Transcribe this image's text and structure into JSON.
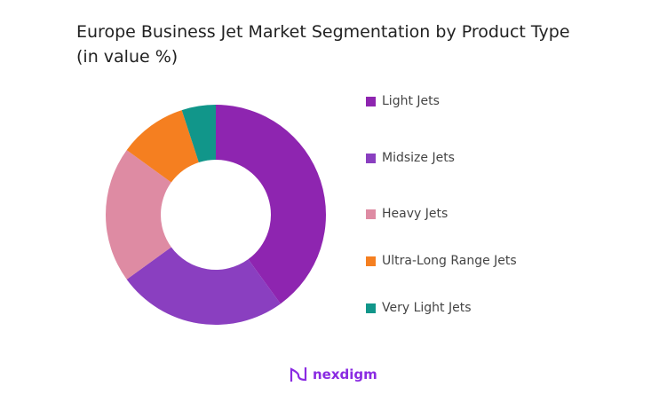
{
  "chart_data": {
    "type": "pie",
    "donut": true,
    "title": "Europe Business Jet Market Segmentation by Product Type (in value %)",
    "categories": [
      "Light Jets",
      "Midsize Jets",
      "Heavy Jets",
      "Ultra-Long Range Jets",
      "Very Light Jets"
    ],
    "values": [
      40,
      25,
      20,
      10,
      5
    ],
    "colors": [
      "#8E25B0",
      "#8A3FC0",
      "#DE8BA3",
      "#F57F20",
      "#11968A"
    ],
    "legend_position": "right"
  },
  "brand": {
    "name": "nexdigm"
  }
}
